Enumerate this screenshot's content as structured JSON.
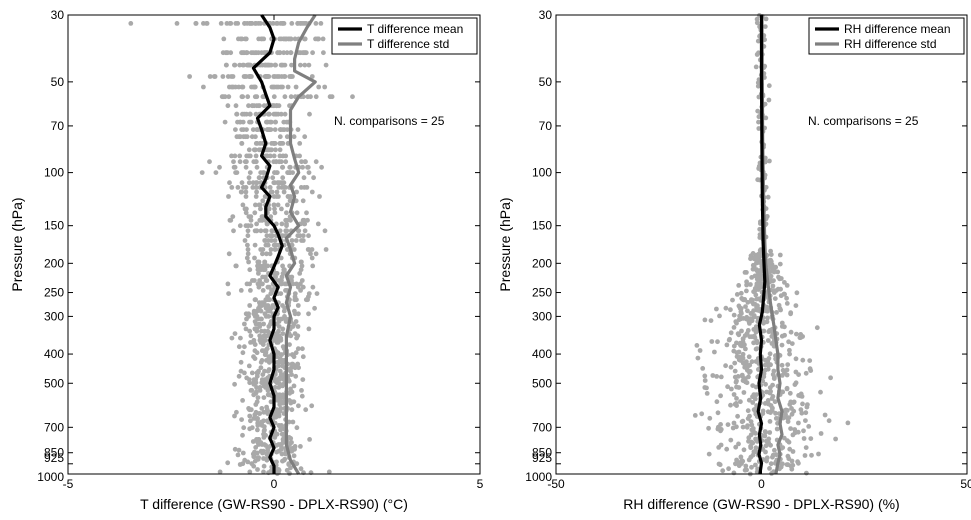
{
  "chart_data": [
    {
      "type": "scatter",
      "xlabel": "T difference (GW-RS90 - DPLX-RS90) (°C)",
      "ylabel": "Pressure (hPa)",
      "xlim": [
        -5,
        5
      ],
      "ylim": [
        1000,
        30
      ],
      "y_scale": "log",
      "x_ticks": [
        -5,
        0,
        5
      ],
      "y_ticks": [
        30,
        50,
        70,
        100,
        150,
        200,
        250,
        300,
        400,
        500,
        700,
        850,
        925,
        1000
      ],
      "grid": false,
      "legend_position": "top-right",
      "annotation": "N. comparisons = 25",
      "series": [
        {
          "name": "T difference mean",
          "color": "#000000",
          "points": [
            [
              -0.3,
              30
            ],
            [
              -0.1,
              33
            ],
            [
              0.0,
              36
            ],
            [
              -0.1,
              40
            ],
            [
              -0.5,
              45
            ],
            [
              -0.3,
              50
            ],
            [
              -0.2,
              55
            ],
            [
              -0.1,
              60
            ],
            [
              -0.4,
              66
            ],
            [
              -0.3,
              72
            ],
            [
              -0.2,
              80
            ],
            [
              -0.3,
              88
            ],
            [
              -0.1,
              95
            ],
            [
              -0.2,
              105
            ],
            [
              -0.3,
              112
            ],
            [
              -0.1,
              120
            ],
            [
              -0.2,
              130
            ],
            [
              -0.2,
              140
            ],
            [
              0.0,
              150
            ],
            [
              0.1,
              160
            ],
            [
              0.2,
              175
            ],
            [
              0.1,
              190
            ],
            [
              0.0,
              205
            ],
            [
              -0.1,
              220
            ],
            [
              0.1,
              240
            ],
            [
              0.0,
              260
            ],
            [
              0.1,
              280
            ],
            [
              0.0,
              300
            ],
            [
              0.0,
              330
            ],
            [
              -0.1,
              360
            ],
            [
              0.0,
              400
            ],
            [
              0.0,
              450
            ],
            [
              -0.1,
              500
            ],
            [
              0.0,
              550
            ],
            [
              0.0,
              600
            ],
            [
              -0.1,
              650
            ],
            [
              0.0,
              700
            ],
            [
              -0.1,
              760
            ],
            [
              0.0,
              820
            ],
            [
              -0.1,
              880
            ],
            [
              0.0,
              940
            ],
            [
              0.0,
              1000
            ]
          ]
        },
        {
          "name": "T difference std",
          "color": "#7f7f7f",
          "points": [
            [
              1.0,
              30
            ],
            [
              0.8,
              33
            ],
            [
              0.6,
              37
            ],
            [
              0.5,
              42
            ],
            [
              0.5,
              46
            ],
            [
              1.0,
              50
            ],
            [
              0.6,
              56
            ],
            [
              0.4,
              62
            ],
            [
              0.4,
              70
            ],
            [
              0.4,
              80
            ],
            [
              0.5,
              90
            ],
            [
              0.6,
              100
            ],
            [
              0.4,
              110
            ],
            [
              0.5,
              120
            ],
            [
              0.4,
              135
            ],
            [
              0.6,
              150
            ],
            [
              0.3,
              165
            ],
            [
              0.4,
              180
            ],
            [
              0.5,
              200
            ],
            [
              0.3,
              220
            ],
            [
              0.4,
              240
            ],
            [
              0.3,
              270
            ],
            [
              0.4,
              300
            ],
            [
              0.3,
              350
            ],
            [
              0.3,
              400
            ],
            [
              0.3,
              450
            ],
            [
              0.3,
              500
            ],
            [
              0.3,
              600
            ],
            [
              0.3,
              700
            ],
            [
              0.3,
              800
            ],
            [
              0.4,
              900
            ],
            [
              0.6,
              1000
            ]
          ]
        }
      ]
    },
    {
      "type": "scatter",
      "xlabel": "RH difference (GW-RS90 - DPLX-RS90) (%)",
      "ylabel": "Pressure (hPa)",
      "xlim": [
        -50,
        50
      ],
      "ylim": [
        1000,
        30
      ],
      "y_scale": "log",
      "x_ticks": [
        -50,
        0,
        50
      ],
      "y_ticks": [
        30,
        50,
        70,
        100,
        150,
        200,
        250,
        300,
        400,
        500,
        700,
        850,
        925,
        1000
      ],
      "grid": false,
      "legend_position": "top-right",
      "annotation": "N. comparisons = 25",
      "series": [
        {
          "name": "RH difference mean",
          "color": "#000000",
          "points": [
            [
              0.0,
              30
            ],
            [
              0.0,
              50
            ],
            [
              0.1,
              80
            ],
            [
              0.2,
              120
            ],
            [
              0.4,
              170
            ],
            [
              0.6,
              200
            ],
            [
              0.8,
              230
            ],
            [
              0.5,
              260
            ],
            [
              0.2,
              290
            ],
            [
              -0.5,
              320
            ],
            [
              0.0,
              360
            ],
            [
              -0.3,
              400
            ],
            [
              0.0,
              450
            ],
            [
              -0.6,
              500
            ],
            [
              -0.2,
              560
            ],
            [
              -0.8,
              620
            ],
            [
              0.0,
              680
            ],
            [
              -0.5,
              740
            ],
            [
              -0.2,
              800
            ],
            [
              -0.6,
              860
            ],
            [
              0.0,
              920
            ],
            [
              -0.4,
              1000
            ]
          ]
        },
        {
          "name": "RH difference std",
          "color": "#7f7f7f",
          "points": [
            [
              0.1,
              30
            ],
            [
              0.2,
              50
            ],
            [
              0.3,
              80
            ],
            [
              0.5,
              120
            ],
            [
              0.8,
              170
            ],
            [
              1.0,
              200
            ],
            [
              1.5,
              230
            ],
            [
              2.0,
              260
            ],
            [
              2.5,
              290
            ],
            [
              3.0,
              320
            ],
            [
              3.5,
              360
            ],
            [
              4.0,
              400
            ],
            [
              4.0,
              450
            ],
            [
              4.5,
              500
            ],
            [
              4.0,
              560
            ],
            [
              5.0,
              620
            ],
            [
              4.5,
              680
            ],
            [
              5.0,
              740
            ],
            [
              4.0,
              800
            ],
            [
              4.5,
              860
            ],
            [
              4.0,
              920
            ],
            [
              3.5,
              1000
            ]
          ]
        }
      ]
    }
  ]
}
